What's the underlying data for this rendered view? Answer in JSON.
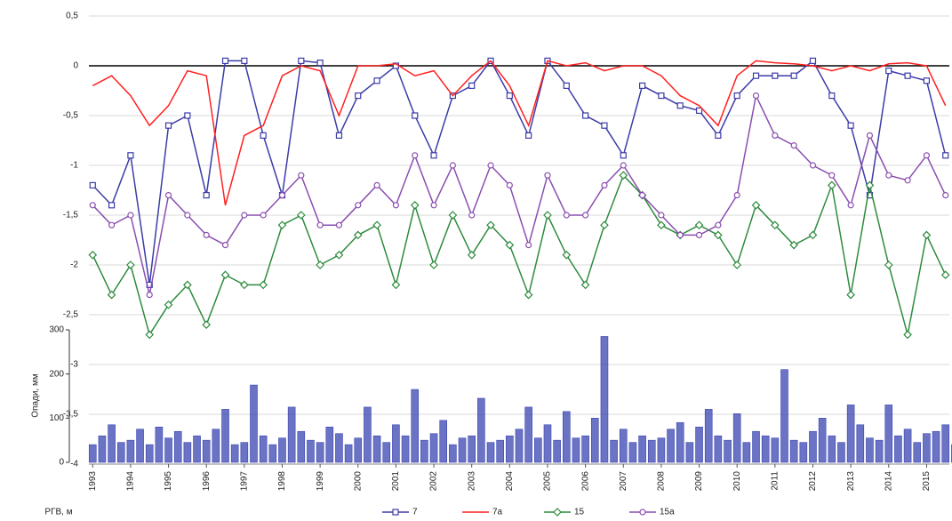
{
  "chart_data": {
    "type": "line",
    "ylabel": "РГВ, м",
    "y2label": "Опади, мм",
    "xlim": [
      1992.9,
      2015.6
    ],
    "xticks": [
      1993,
      1994,
      1995,
      1996,
      1997,
      1998,
      1999,
      2000,
      2001,
      2002,
      2003,
      2004,
      2005,
      2006,
      2007,
      2008,
      2009,
      2010,
      2011,
      2012,
      2013,
      2014,
      2015
    ],
    "ylim": [
      -4,
      0.5
    ],
    "yticks": [
      {
        "value": 0.5,
        "label": "0,5"
      },
      0,
      {
        "value": -0.5,
        "label": "-0,5"
      },
      -1,
      {
        "value": -1.5,
        "label": "-1,5"
      },
      -2,
      {
        "value": -2.5,
        "label": "-2,5"
      },
      -3,
      {
        "value": -3.5,
        "label": "-3,5"
      },
      -4
    ],
    "y2lim": [
      0,
      300
    ],
    "y2ticks": [
      0,
      100,
      200,
      300
    ],
    "grid": true,
    "legend": "bottom",
    "x": [
      1993.0,
      1993.5,
      1994.0,
      1994.5,
      1995.0,
      1995.5,
      1996.0,
      1996.5,
      1997.0,
      1997.5,
      1998.0,
      1998.5,
      1999.0,
      1999.5,
      2000.0,
      2000.5,
      2001.0,
      2001.5,
      2002.0,
      2002.5,
      2003.0,
      2003.5,
      2004.0,
      2004.5,
      2005.0,
      2005.5,
      2006.0,
      2006.5,
      2007.0,
      2007.5,
      2008.0,
      2008.5,
      2009.0,
      2009.5,
      2010.0,
      2010.5,
      2011.0,
      2011.5,
      2012.0,
      2012.5,
      2013.0,
      2013.5,
      2014.0,
      2014.5,
      2015.0,
      2015.5
    ],
    "series": [
      {
        "name": "7",
        "color": "#3c3ca8",
        "marker": "square",
        "values": [
          -1.2,
          -1.4,
          -0.9,
          -2.2,
          -0.6,
          -0.5,
          -1.3,
          0.05,
          0.05,
          -0.7,
          -1.3,
          0.05,
          0.03,
          -0.7,
          -0.3,
          -0.15,
          0.0,
          -0.5,
          -0.9,
          -0.3,
          -0.2,
          0.05,
          -0.3,
          -0.7,
          0.05,
          -0.2,
          -0.5,
          -0.6,
          -0.9,
          -0.2,
          -0.3,
          -0.4,
          -0.45,
          -0.7,
          -0.3,
          -0.1,
          -0.1,
          -0.1,
          0.05,
          -0.3,
          -0.6,
          -1.3,
          -0.05,
          -0.1,
          -0.15,
          -0.9
        ]
      },
      {
        "name": "7a",
        "color": "#ff2020",
        "marker": "none",
        "values": [
          -0.2,
          -0.1,
          -0.3,
          -0.6,
          -0.4,
          -0.05,
          -0.1,
          -1.4,
          -0.7,
          -0.6,
          -0.1,
          0.0,
          -0.05,
          -0.5,
          0.0,
          0.0,
          0.02,
          -0.1,
          -0.05,
          -0.3,
          -0.1,
          0.05,
          -0.2,
          -0.6,
          0.05,
          0.0,
          0.03,
          -0.05,
          0.0,
          0.0,
          -0.1,
          -0.3,
          -0.4,
          -0.6,
          -0.1,
          0.05,
          0.03,
          0.02,
          0.0,
          -0.05,
          0.0,
          -0.05,
          0.02,
          0.03,
          0.0,
          -0.4
        ]
      },
      {
        "name": "15",
        "color": "#2e8b3e",
        "marker": "diamond",
        "values": [
          -1.9,
          -2.3,
          -2.0,
          -2.7,
          -2.4,
          -2.2,
          -2.6,
          -2.1,
          -2.2,
          -2.2,
          -1.6,
          -1.5,
          -2.0,
          -1.9,
          -1.7,
          -1.6,
          -2.2,
          -1.4,
          -2.0,
          -1.5,
          -1.9,
          -1.6,
          -1.8,
          -2.3,
          -1.5,
          -1.9,
          -2.2,
          -1.6,
          -1.1,
          -1.3,
          -1.6,
          -1.7,
          -1.6,
          -1.7,
          -2.0,
          -1.4,
          -1.6,
          -1.8,
          -1.7,
          -1.2,
          -2.3,
          -1.2,
          -2.0,
          -2.7,
          -1.7,
          -2.1
        ]
      },
      {
        "name": "15a",
        "color": "#8a4fb0",
        "marker": "circle",
        "values": [
          -1.4,
          -1.6,
          -1.5,
          -2.3,
          -1.3,
          -1.5,
          -1.7,
          -1.8,
          -1.5,
          -1.5,
          -1.3,
          -1.1,
          -1.6,
          -1.6,
          -1.4,
          -1.2,
          -1.4,
          -0.9,
          -1.4,
          -1.0,
          -1.5,
          -1.0,
          -1.2,
          -1.8,
          -1.1,
          -1.5,
          -1.5,
          -1.2,
          -1.0,
          -1.3,
          -1.5,
          -1.7,
          -1.7,
          -1.6,
          -1.3,
          -0.3,
          -0.7,
          -0.8,
          -1.0,
          -1.1,
          -1.4,
          -0.7,
          -1.1,
          -1.15,
          -0.9,
          -1.3
        ]
      }
    ],
    "bars": {
      "axis": "y2",
      "color": "#3a44b0",
      "x": [
        1993.0,
        1993.25,
        1993.5,
        1993.75,
        1994.0,
        1994.25,
        1994.5,
        1994.75,
        1995.0,
        1995.25,
        1995.5,
        1995.75,
        1996.0,
        1996.25,
        1996.5,
        1996.75,
        1997.0,
        1997.25,
        1997.5,
        1997.75,
        1998.0,
        1998.25,
        1998.5,
        1998.75,
        1999.0,
        1999.25,
        1999.5,
        1999.75,
        2000.0,
        2000.25,
        2000.5,
        2000.75,
        2001.0,
        2001.25,
        2001.5,
        2001.75,
        2002.0,
        2002.25,
        2002.5,
        2002.75,
        2003.0,
        2003.25,
        2003.5,
        2003.75,
        2004.0,
        2004.25,
        2004.5,
        2004.75,
        2005.0,
        2005.25,
        2005.5,
        2005.75,
        2006.0,
        2006.25,
        2006.5,
        2006.75,
        2007.0,
        2007.25,
        2007.5,
        2007.75,
        2008.0,
        2008.25,
        2008.5,
        2008.75,
        2009.0,
        2009.25,
        2009.5,
        2009.75,
        2010.0,
        2010.25,
        2010.5,
        2010.75,
        2011.0,
        2011.25,
        2011.5,
        2011.75,
        2012.0,
        2012.25,
        2012.5,
        2012.75,
        2013.0,
        2013.25,
        2013.5,
        2013.75,
        2014.0,
        2014.25,
        2014.5,
        2014.75,
        2015.0,
        2015.25,
        2015.5,
        2015.75
      ],
      "values": [
        40,
        60,
        85,
        45,
        50,
        75,
        40,
        80,
        55,
        70,
        45,
        60,
        50,
        75,
        120,
        40,
        45,
        175,
        60,
        40,
        55,
        125,
        70,
        50,
        45,
        80,
        65,
        40,
        55,
        125,
        60,
        45,
        85,
        60,
        165,
        50,
        65,
        95,
        40,
        55,
        60,
        145,
        45,
        50,
        60,
        75,
        125,
        55,
        85,
        50,
        115,
        55,
        60,
        100,
        285,
        50,
        75,
        45,
        60,
        50,
        55,
        75,
        90,
        45,
        80,
        120,
        60,
        50,
        110,
        45,
        70,
        60,
        55,
        210,
        50,
        45,
        70,
        100,
        60,
        45,
        130,
        85,
        55,
        50,
        130,
        60,
        75,
        45,
        65,
        70,
        85,
        40
      ]
    }
  }
}
